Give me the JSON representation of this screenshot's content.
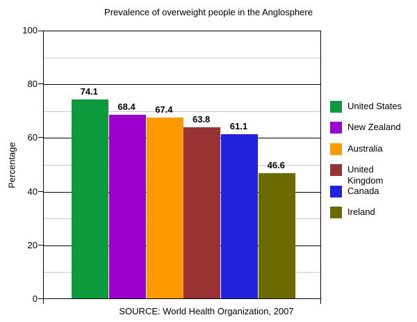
{
  "title": "Prevalence of overweight people in the Anglosphere",
  "source": "SOURCE: World Health Organization, 2007",
  "chart_data": {
    "type": "bar",
    "categories": [
      "United States",
      "New Zealand",
      "Australia",
      "United Kingdom",
      "Canada",
      "Ireland"
    ],
    "values": [
      74.1,
      68.4,
      67.4,
      63.8,
      61.1,
      46.6
    ],
    "colors": [
      "#0c9b3c",
      "#9c00ce",
      "#ff9900",
      "#993333",
      "#2222dd",
      "#6b6b00"
    ],
    "title": "Prevalence of overweight people in the Anglosphere",
    "xlabel": "",
    "ylabel": "Percentage",
    "ylim": [
      0,
      100
    ],
    "yticks_major": [
      0,
      20,
      40,
      60,
      80,
      100
    ],
    "yticks_minor": [
      10,
      30,
      50,
      70,
      90
    ],
    "grid": "horizontal: minor gray, major black",
    "legend_position": "right",
    "value_labels": true,
    "annotation": "SOURCE: World Health Organization, 2007"
  },
  "palette": {
    "grid_minor": "#c8c8c8",
    "grid_major": "#000000",
    "axis": "#000000",
    "background": "#ffffff",
    "text": "#000000"
  }
}
